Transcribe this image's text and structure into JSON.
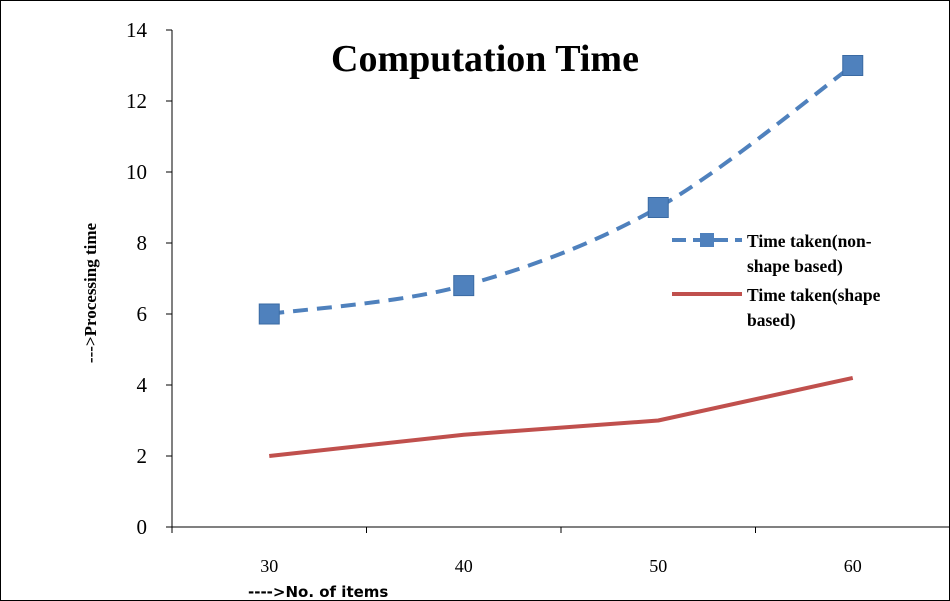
{
  "chart_data": {
    "type": "line",
    "title": "Computation Time",
    "xlabel": "---->No. of items",
    "ylabel": "--->Processing time",
    "categories": [
      "30",
      "40",
      "50",
      "60"
    ],
    "ylim": [
      0,
      14
    ],
    "yticks": [
      "0",
      "2",
      "4",
      "6",
      "8",
      "10",
      "12",
      "14"
    ],
    "grid": false,
    "legend_position": "right",
    "series": [
      {
        "name_lines": [
          "Time taken(non-",
          "shape based)"
        ],
        "values": [
          6,
          6.8,
          9,
          13
        ],
        "color": "#4f81bd",
        "style": "dashed",
        "marker": "square"
      },
      {
        "name_lines": [
          "Time taken(shape",
          "based)"
        ],
        "values": [
          2,
          2.6,
          3,
          4.2
        ],
        "color": "#c0504d",
        "style": "solid",
        "marker": "none"
      }
    ]
  }
}
